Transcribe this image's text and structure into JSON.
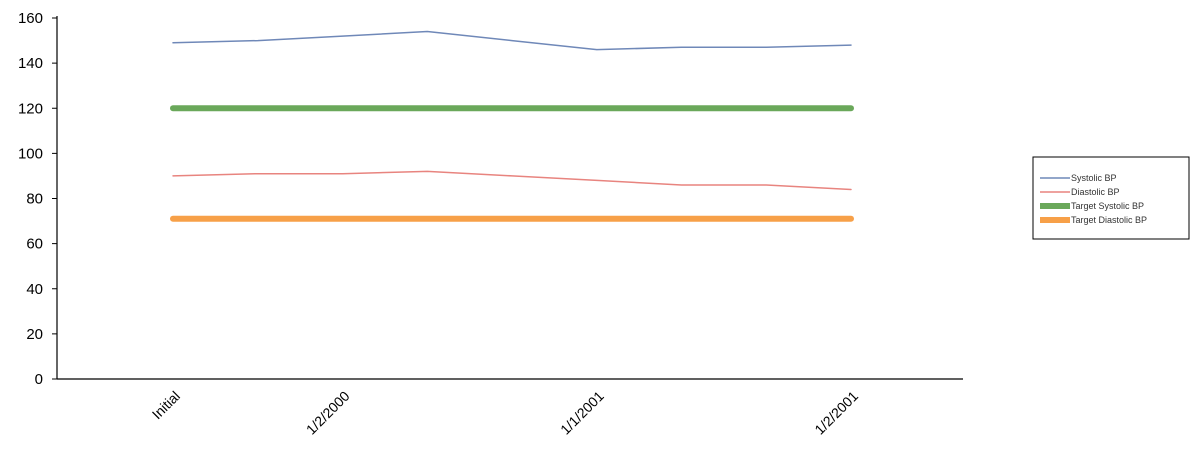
{
  "chart_data": {
    "type": "line",
    "categories": [
      "Initial",
      "",
      "1/2/2000",
      "",
      "",
      "1/1/2001",
      "",
      "",
      "1/2/2001"
    ],
    "series": [
      {
        "name": "Systolic BP",
        "color": "#6f88b8",
        "width": 1.5,
        "values": [
          149,
          150,
          152,
          154,
          150,
          146,
          147,
          147,
          148
        ]
      },
      {
        "name": "Diastolic BP",
        "color": "#e8847f",
        "width": 1.5,
        "values": [
          90,
          91,
          91,
          92,
          90,
          88,
          86,
          86,
          84
        ]
      },
      {
        "name": "Target Systolic BP",
        "color": "#6aa85a",
        "width": 6,
        "values": [
          120,
          120,
          120,
          120,
          120,
          120,
          120,
          120,
          120
        ]
      },
      {
        "name": "Target Diastolic BP",
        "color": "#f7a048",
        "width": 6,
        "values": [
          71,
          71,
          71,
          71,
          71,
          71,
          71,
          71,
          71
        ]
      }
    ],
    "yticks": [
      0,
      20,
      40,
      60,
      80,
      100,
      120,
      140,
      160
    ],
    "ylim": [
      0,
      160
    ],
    "legend_position": "right",
    "grid": false
  }
}
